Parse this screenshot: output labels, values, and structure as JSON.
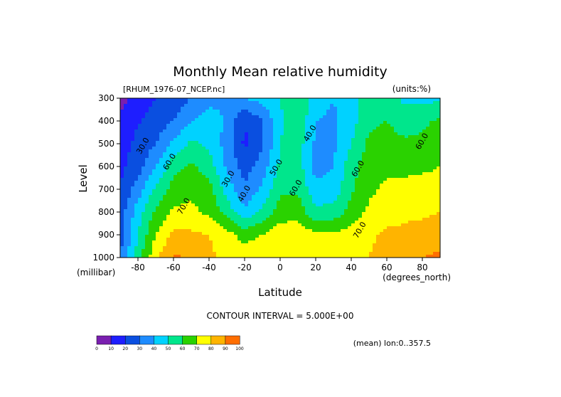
{
  "chart_data": {
    "type": "heatmap",
    "title": "Monthly Mean relative humidity",
    "source_label": "[RHUM_1976-07_NCEP.nc]",
    "units_label": "(units:%)",
    "xlabel": "Latitude",
    "xunits": "(degrees_north)",
    "ylabel": "Level",
    "yunits": "(millibar)",
    "xlim": [
      -90,
      90
    ],
    "ylim": [
      1000,
      300
    ],
    "x_ticks": [
      -80,
      -60,
      -40,
      -20,
      0,
      20,
      40,
      60,
      80
    ],
    "y_ticks": [
      300,
      400,
      500,
      600,
      700,
      800,
      900,
      1000
    ],
    "x_tick_labels": [
      "-80",
      "-60",
      "-40",
      "-20",
      "0",
      "20",
      "40",
      "60",
      "80"
    ],
    "y_tick_labels": [
      "300",
      "400",
      "500",
      "600",
      "700",
      "800",
      "900",
      "1000"
    ],
    "contour_interval_text": "CONTOUR INTERVAL = 5.000E+00",
    "mean_text": "(mean) lon:0..357.5",
    "levels": [
      300,
      400,
      500,
      600,
      700,
      800,
      900,
      1000
    ],
    "latitudes": [
      -90,
      -80,
      -70,
      -60,
      -50,
      -40,
      -30,
      -20,
      -10,
      0,
      10,
      20,
      30,
      40,
      50,
      60,
      70,
      80,
      90
    ],
    "values": [
      [
        6,
        14,
        20,
        24,
        30,
        36,
        40,
        40,
        44,
        50,
        60,
        45,
        40,
        46,
        55,
        55,
        48,
        47,
        48
      ],
      [
        12,
        19,
        24,
        30,
        40,
        46,
        38,
        20,
        30,
        48,
        58,
        40,
        38,
        46,
        58,
        60,
        55,
        58,
        62
      ],
      [
        15,
        23,
        30,
        42,
        52,
        48,
        36,
        18,
        28,
        50,
        55,
        38,
        38,
        50,
        62,
        64,
        62,
        62,
        65
      ],
      [
        18,
        25,
        40,
        56,
        62,
        55,
        38,
        25,
        35,
        52,
        56,
        35,
        40,
        56,
        66,
        68,
        68,
        68,
        70
      ],
      [
        20,
        35,
        52,
        64,
        68,
        64,
        46,
        32,
        42,
        58,
        58,
        44,
        44,
        58,
        68,
        72,
        72,
        74,
        74
      ],
      [
        25,
        45,
        62,
        72,
        72,
        68,
        56,
        42,
        52,
        65,
        66,
        52,
        54,
        64,
        72,
        76,
        78,
        78,
        80
      ],
      [
        25,
        50,
        70,
        82,
        82,
        80,
        74,
        66,
        70,
        76,
        76,
        72,
        72,
        74,
        78,
        82,
        82,
        84,
        85
      ],
      [
        30,
        55,
        78,
        92,
        88,
        82,
        78,
        76,
        78,
        80,
        80,
        80,
        78,
        78,
        80,
        84,
        86,
        90,
        92
      ]
    ],
    "colorbar": {
      "colors": [
        "#7a1fb0",
        "#1e1eff",
        "#0a4fe0",
        "#1e8cff",
        "#00d2ff",
        "#00e68c",
        "#2ad200",
        "#ffff00",
        "#ffb400",
        "#ff6e00",
        "#ff0000"
      ],
      "bounds": [
        0,
        10,
        20,
        30,
        40,
        50,
        60,
        70,
        80,
        90,
        100
      ],
      "labels": [
        "0",
        "10",
        "20",
        "30",
        "40",
        "50",
        "60",
        "70",
        "80",
        "90",
        "100"
      ]
    },
    "contour_labels": [
      {
        "text": "30.0",
        "lat": -76,
        "level": 515
      },
      {
        "text": "60.0",
        "lat": -61,
        "level": 585
      },
      {
        "text": "70.0",
        "lat": -53,
        "level": 780
      },
      {
        "text": "30.0",
        "lat": -28,
        "level": 660
      },
      {
        "text": "40.0",
        "lat": -19,
        "level": 725
      },
      {
        "text": "50.0",
        "lat": -1,
        "level": 610
      },
      {
        "text": "60.0",
        "lat": 10,
        "level": 700
      },
      {
        "text": "40.0",
        "lat": 18,
        "level": 460
      },
      {
        "text": "60.0",
        "lat": 45,
        "level": 615
      },
      {
        "text": "70.0",
        "lat": 46,
        "level": 885
      },
      {
        "text": "60.0",
        "lat": 81,
        "level": 495
      }
    ]
  }
}
